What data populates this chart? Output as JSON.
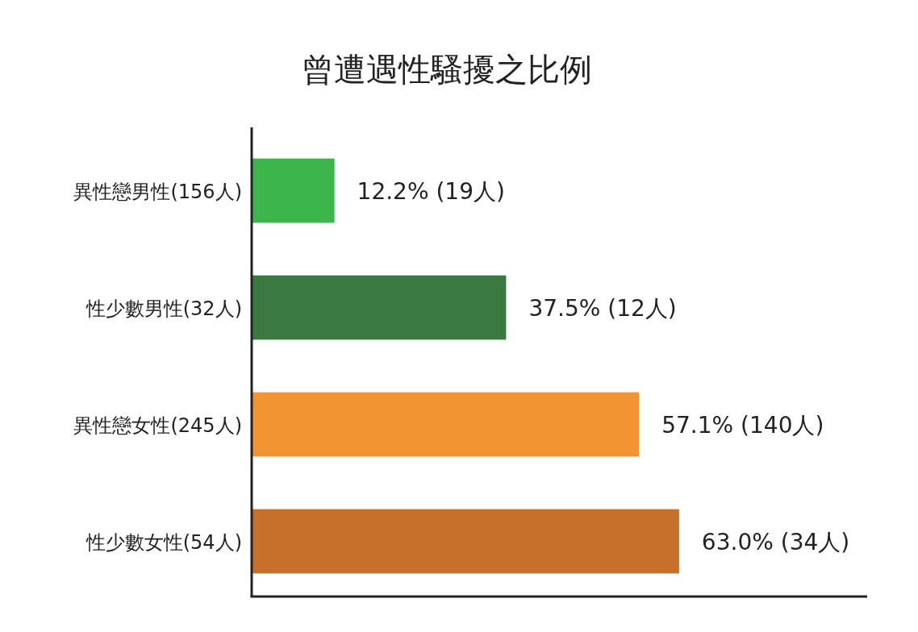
{
  "chart_data": {
    "type": "bar",
    "orientation": "horizontal",
    "title": "曾遭遇性騷擾之比例",
    "categories": [
      "異性戀男性(156人)",
      "性少數男性(32人)",
      "異性戀女性(245人)",
      "性少數女性(54人)"
    ],
    "values": [
      12.2,
      37.5,
      57.1,
      63.0
    ],
    "colors": [
      "#3cb54a",
      "#3a7a40",
      "#f39433",
      "#c6702c"
    ],
    "value_labels": [
      "12.2% (19人)",
      "37.5% (12人)",
      "57.1% (140人)",
      "63.0% (34人)"
    ]
  }
}
